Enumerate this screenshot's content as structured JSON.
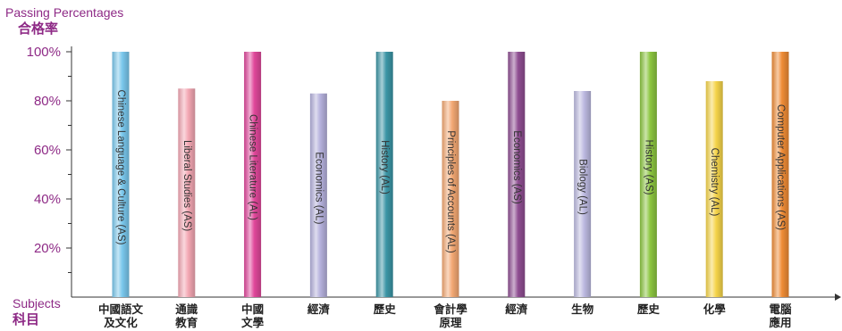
{
  "chart_data": {
    "type": "bar",
    "title_en": "Passing Percentages",
    "title_zh": "合格率",
    "xlabel_en": "Subjects",
    "xlabel_zh": "科目",
    "ylim": [
      0,
      100
    ],
    "yticks": [
      20,
      40,
      60,
      80,
      100
    ],
    "ytick_labels": [
      "20%",
      "40%",
      "60%",
      "80%",
      "100%"
    ],
    "grid": false,
    "categories": [
      {
        "zh": [
          "中國語文",
          "及文化"
        ],
        "en": "Chinese Language & Culture (AS)",
        "value": 100,
        "color": "#79c7ec"
      },
      {
        "zh": [
          "通識",
          "教育"
        ],
        "en": "Liberal Studies (AS)",
        "value": 85,
        "color": "#f3a7b3"
      },
      {
        "zh": [
          "中國",
          "文學"
        ],
        "en": "Chinese Literature (AL)",
        "value": 100,
        "color": "#e0479a"
      },
      {
        "zh": [
          "經濟"
        ],
        "en": "Economics (AL)",
        "value": 83,
        "color": "#b5b1dc"
      },
      {
        "zh": [
          "歷史"
        ],
        "en": "History (AL)",
        "value": 100,
        "color": "#3b95a5"
      },
      {
        "zh": [
          "會計學",
          "原理"
        ],
        "en": "Principles of Accounts (AL)",
        "value": 80,
        "color": "#f3a873"
      },
      {
        "zh": [
          "經濟"
        ],
        "en": "Economics (AS)",
        "value": 100,
        "color": "#8e4e91"
      },
      {
        "zh": [
          "生物"
        ],
        "en": "Biology (AL)",
        "value": 84,
        "color": "#bcb9e0"
      },
      {
        "zh": [
          "歷史"
        ],
        "en": "History (AS)",
        "value": 100,
        "color": "#8cc640"
      },
      {
        "zh": [
          "化學"
        ],
        "en": "Chemistry (AL)",
        "value": 88,
        "color": "#f5d44a"
      },
      {
        "zh": [
          "電腦",
          "應用"
        ],
        "en": "Computer Applications (AS)",
        "value": 100,
        "color": "#ef8c36"
      }
    ]
  }
}
